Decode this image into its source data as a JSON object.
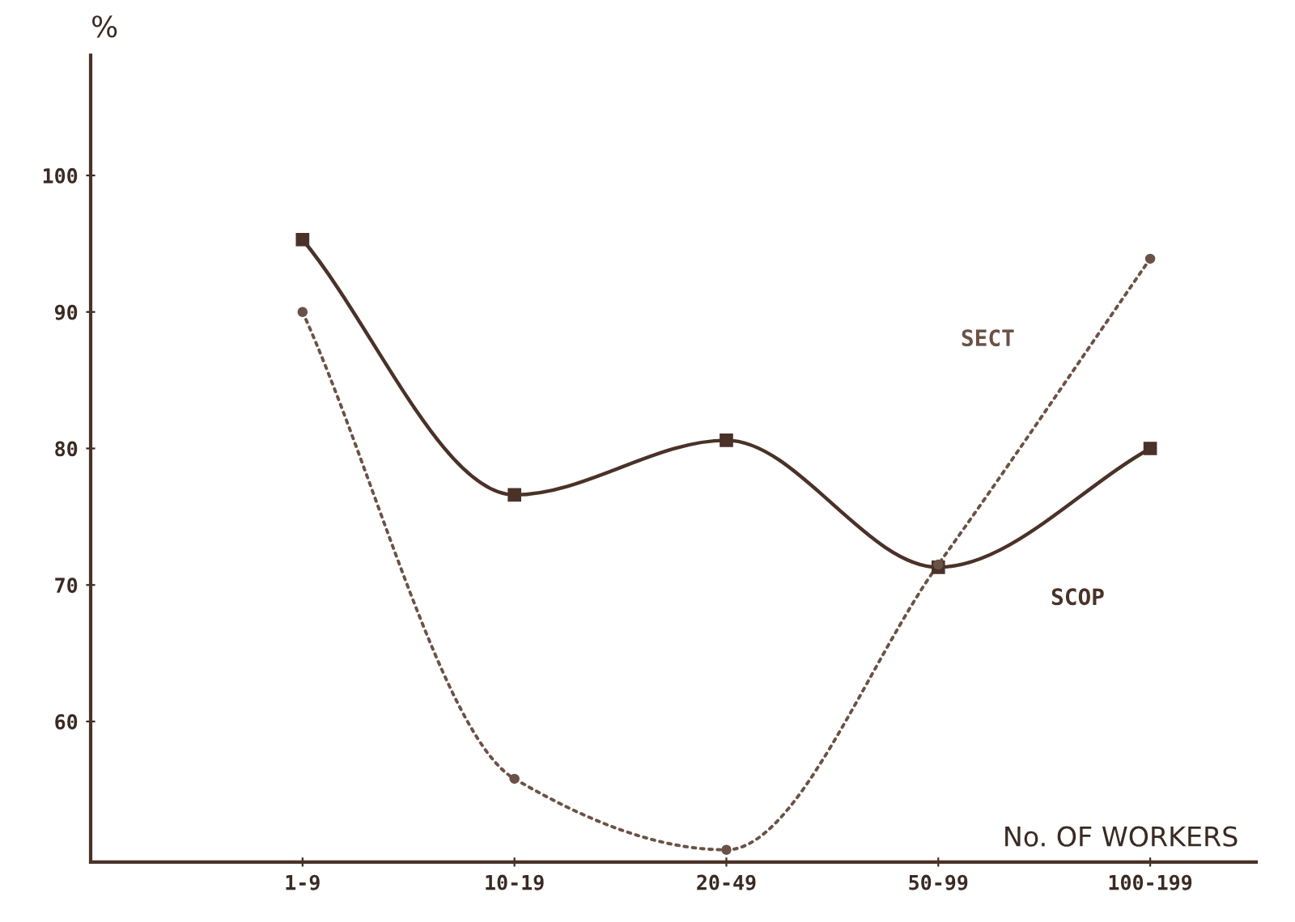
{
  "chart_data": {
    "type": "line",
    "categories": [
      "1-9",
      "10-19",
      "20-49",
      "50-99",
      "100-199"
    ],
    "series": [
      {
        "name": "SCOP",
        "color": "#4a3228",
        "values": [
          95.3,
          76.6,
          80.6,
          71.3,
          80.0
        ],
        "marker": "square",
        "line_style": "solid"
      },
      {
        "name": "SECT",
        "color": "#6b5246",
        "values": [
          90.0,
          55.8,
          50.6,
          71.5,
          93.9
        ],
        "marker": "circle",
        "line_style": "dotted"
      }
    ],
    "ylabel": "%",
    "xlabel": "No. OF WORKERS",
    "ylim": [
      49.7,
      108.8
    ],
    "yticks": [
      60,
      70,
      80,
      90,
      100
    ],
    "grid": false,
    "legend": false
  }
}
